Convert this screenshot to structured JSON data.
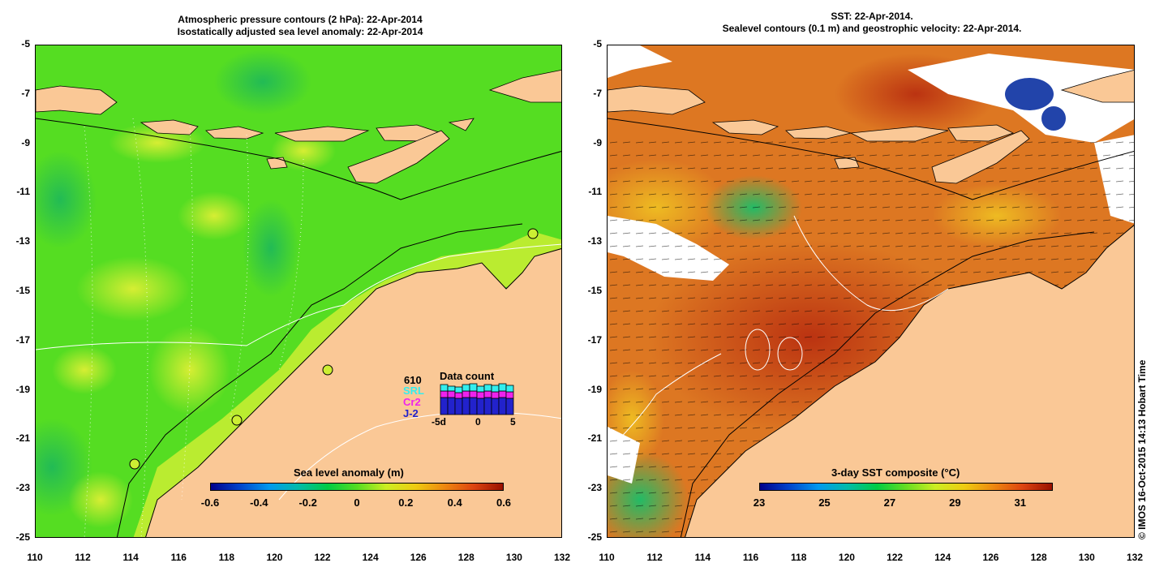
{
  "left_panel": {
    "title_line1": "Atmospheric pressure contours (2 hPa): 22-Apr-2014",
    "title_line2": "Isostatically adjusted sea level anomaly: 22-Apr-2014",
    "colorbar": {
      "title": "Sea level anomaly (m)",
      "ticks": [
        "-0.6",
        "-0.4",
        "-0.2",
        "0",
        "0.2",
        "0.4",
        "0.6"
      ],
      "range": [
        -0.6,
        0.6
      ]
    },
    "data_count": {
      "title": "Data count",
      "total": "610",
      "satellites": [
        {
          "name": "SRL",
          "color": "#33eeee"
        },
        {
          "name": "Cr2",
          "color": "#ee22ee"
        },
        {
          "name": "J-2",
          "color": "#2222cc"
        }
      ],
      "axis_labels": [
        "-5d",
        "0",
        "5"
      ]
    }
  },
  "right_panel": {
    "title_line1": "SST: 22-Apr-2014.",
    "title_line2": "Sealevel contours (0.1 m) and geostrophic velocity: 22-Apr-2014.",
    "colorbar": {
      "title": "3-day SST composite (°C)",
      "ticks": [
        "23",
        "25",
        "27",
        "29",
        "31"
      ],
      "range": [
        23,
        32
      ]
    }
  },
  "axes": {
    "x_ticks": [
      "110",
      "112",
      "114",
      "116",
      "118",
      "120",
      "122",
      "124",
      "126",
      "128",
      "130",
      "132"
    ],
    "y_ticks": [
      "-5",
      "-7",
      "-9",
      "-11",
      "-13",
      "-15",
      "-17",
      "-19",
      "-21",
      "-23",
      "-25"
    ],
    "lon_range": [
      110,
      132
    ],
    "lat_range": [
      -25,
      -5
    ]
  },
  "copyright": "© IMOS 16-Oct-2015 14:13 Hobart Time",
  "colors": {
    "land": "#fac896",
    "sla_green": "#22cc22",
    "sla_yellow": "#ccee22",
    "sst_orange": "#dd7722",
    "sst_red": "#bb3311"
  }
}
